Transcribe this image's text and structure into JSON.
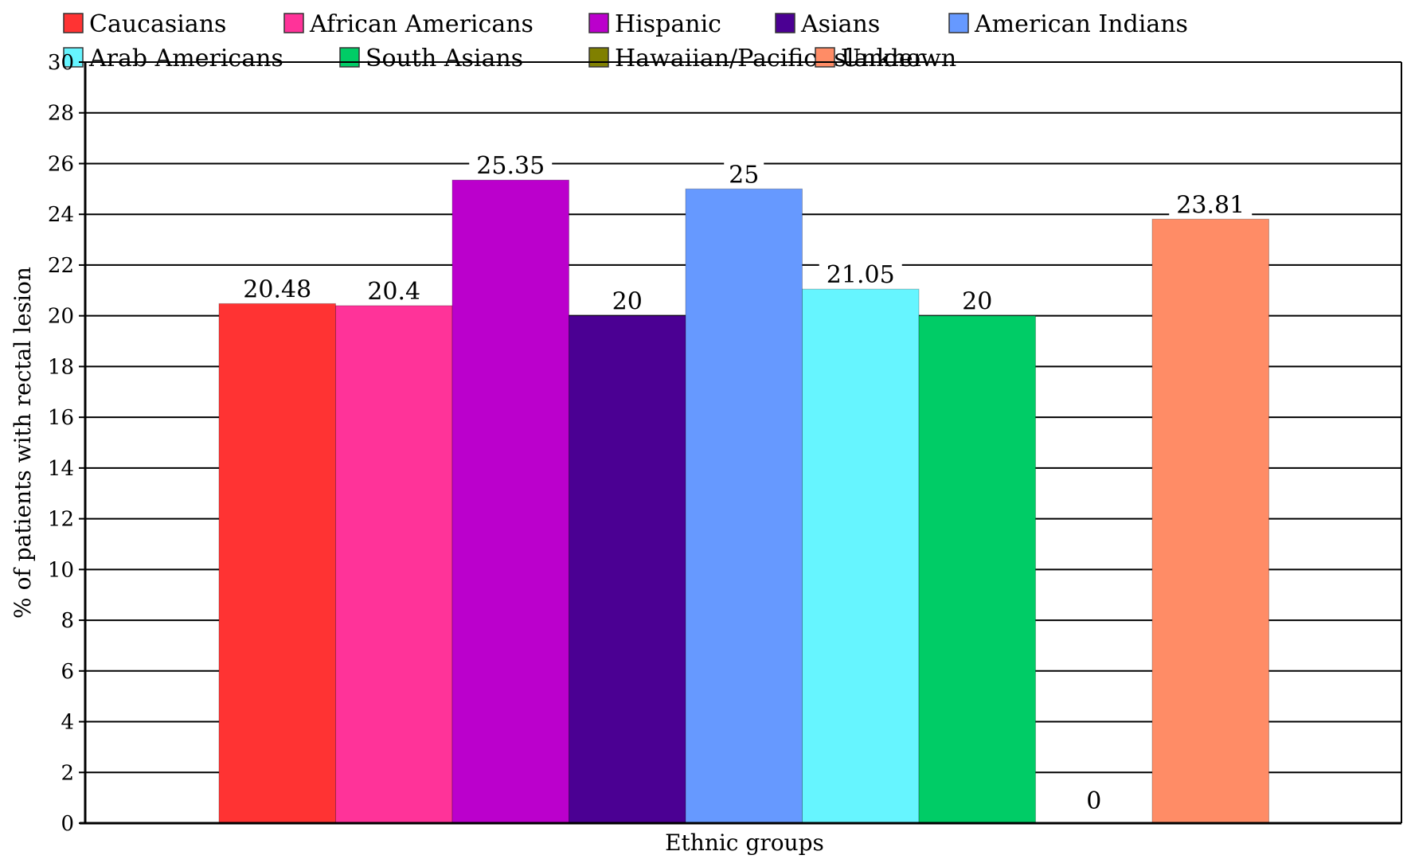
{
  "chart_data": {
    "type": "bar",
    "categories": [
      "Caucasians",
      "African Americans",
      "Hispanic",
      "Asians",
      "American Indians",
      "Arab Americans",
      "South Asians",
      "Hawaiian/Pacific Islander",
      "Unknown"
    ],
    "values": [
      20.48,
      20.4,
      25.35,
      20,
      25,
      21.05,
      20,
      0,
      23.81
    ],
    "data_labels": [
      "20.48",
      "20.4",
      "25.35",
      "20",
      "25",
      "21.05",
      "20",
      "0",
      "23.81"
    ],
    "colors": [
      "#ff3333",
      "#ff3399",
      "#bb00cc",
      "#4b0093",
      "#6699ff",
      "#66f5ff",
      "#00cc66",
      "#808000",
      "#ff8c66"
    ],
    "xlabel": "Ethnic groups",
    "ylabel": "% of patients with rectal lesion",
    "ylim": [
      0,
      30
    ],
    "yticks": [
      0,
      2,
      4,
      6,
      8,
      10,
      12,
      14,
      16,
      18,
      20,
      22,
      24,
      26,
      28,
      30
    ],
    "grid": true,
    "legend": "top"
  }
}
